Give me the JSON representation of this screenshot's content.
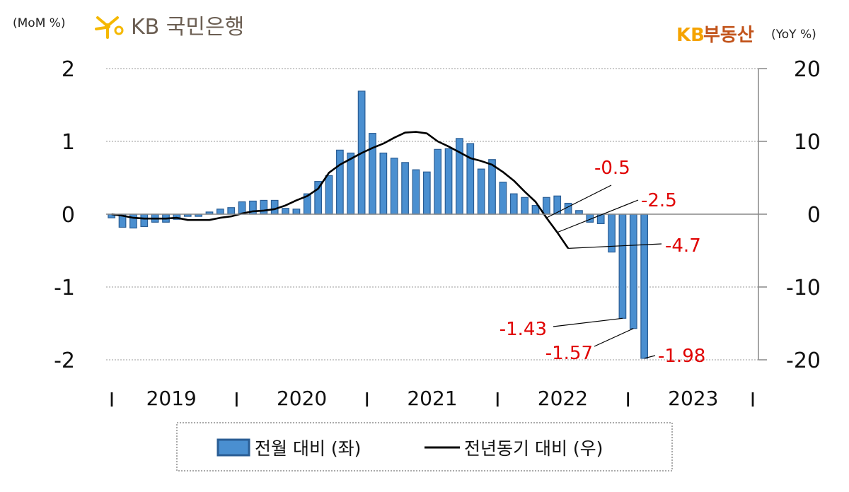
{
  "header": {
    "left_unit": "(MoM %)",
    "right_unit": "(YoY %)",
    "bank_logo_text": "KB 국민은행",
    "brand_prefix": "KB",
    "brand_suffix": "부동산"
  },
  "colors": {
    "bar_fill": "#4a8fd0",
    "bar_stroke": "#2a5d94",
    "line": "#000000",
    "annotation": "#e00000",
    "logo_star": "#f5b800",
    "brand": "#f5a300"
  },
  "chart_data": {
    "type": "bar",
    "title": "",
    "left_ylim": [
      -2,
      2
    ],
    "right_ylim": [
      -20,
      20
    ],
    "left_ticks": [
      "2",
      "1",
      "0",
      "-1",
      "-2"
    ],
    "right_ticks": [
      "20",
      "10",
      "0",
      "-10",
      "-20"
    ],
    "grid": true,
    "x_start": "2019-01",
    "x_end": "2023-12",
    "year_labels": [
      "2019",
      "2020",
      "2021",
      "2022",
      "2023"
    ],
    "year_separator": "I",
    "series": [
      {
        "name": "전월 대비 (좌)",
        "axis": "left",
        "kind": "bar",
        "values": [
          -0.05,
          -0.18,
          -0.19,
          -0.17,
          -0.11,
          -0.11,
          -0.07,
          -0.03,
          -0.03,
          0.03,
          0.07,
          0.09,
          0.17,
          0.18,
          0.19,
          0.19,
          0.08,
          0.07,
          0.28,
          0.45,
          0.53,
          0.88,
          0.84,
          1.69,
          1.11,
          0.84,
          0.77,
          0.71,
          0.61,
          0.58,
          0.89,
          0.9,
          1.04,
          0.97,
          0.62,
          0.75,
          0.44,
          0.28,
          0.23,
          0.12,
          0.23,
          0.25,
          0.15,
          0.05,
          -0.11,
          -0.13,
          -0.52,
          -1.43,
          -1.57,
          -1.98
        ]
      },
      {
        "name": "전년동기 대비 (우)",
        "axis": "right",
        "kind": "line",
        "values": [
          0.0,
          -0.2,
          -0.5,
          -0.6,
          -0.6,
          -0.6,
          -0.5,
          -0.8,
          -0.8,
          -0.8,
          -0.5,
          -0.3,
          0.1,
          0.4,
          0.5,
          0.7,
          1.2,
          1.9,
          2.5,
          3.5,
          5.7,
          6.8,
          7.6,
          8.4,
          9.1,
          9.7,
          10.5,
          11.2,
          11.3,
          11.1,
          10.0,
          9.3,
          8.5,
          7.7,
          7.3,
          6.8,
          5.8,
          4.6,
          3.1,
          1.7,
          -0.5,
          -2.5,
          -4.7
        ]
      }
    ],
    "annotations": [
      {
        "text": "-0.5",
        "series": "전년동기 대비 (우)",
        "index": 40
      },
      {
        "text": "-2.5",
        "series": "전년동기 대비 (우)",
        "index": 41
      },
      {
        "text": "-4.7",
        "series": "전년동기 대비 (우)",
        "index": 42
      },
      {
        "text": "-1.43",
        "series": "전월 대비 (좌)",
        "index": 47
      },
      {
        "text": "-1.57",
        "series": "전월 대비 (좌)",
        "index": 48
      },
      {
        "text": "-1.98",
        "series": "전월 대비 (좌)",
        "index": 49
      }
    ],
    "legend": {
      "placement": "bottom",
      "items": [
        "전월 대비 (좌)",
        "전년동기 대비 (우)"
      ]
    }
  }
}
